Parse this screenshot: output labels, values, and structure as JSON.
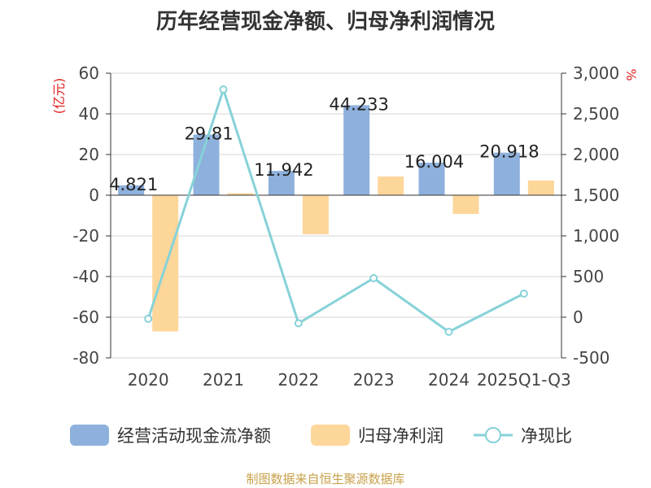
{
  "chart_data": {
    "type": "bar",
    "title": "历年经营现金净额、归母净利润情况",
    "categories": [
      "2020",
      "2021",
      "2022",
      "2023",
      "2024",
      "2025Q1-Q3"
    ],
    "left_axis": {
      "unit": "(亿元)",
      "range": [
        -80,
        60
      ],
      "ticks": [
        "60",
        "40",
        "20",
        "0",
        "-20",
        "-40",
        "-60",
        "-80"
      ]
    },
    "right_axis": {
      "unit": "%",
      "range": [
        -500,
        3000
      ],
      "ticks": [
        "3,000",
        "2,500",
        "2,000",
        "1,500",
        "1,000",
        "500",
        "0",
        "-500"
      ]
    },
    "series": [
      {
        "name": "经营活动现金流净额",
        "type": "bar",
        "axis": "left",
        "color": "#8eb0dc",
        "values": [
          4.821,
          29.81,
          11.942,
          44.233,
          16.004,
          20.918
        ],
        "labels": [
          "4.821",
          "29.81",
          "11.942",
          "44.233",
          "16.004",
          "20.918"
        ]
      },
      {
        "name": "归母净利润",
        "type": "bar",
        "axis": "left",
        "color": "#fdd69a",
        "values": [
          -67,
          1,
          -19.2,
          9.2,
          -9.2,
          7.2
        ]
      },
      {
        "name": "净现比",
        "type": "line",
        "axis": "right",
        "color": "#86d2d8",
        "values": [
          -20,
          2800,
          -75,
          480,
          -180,
          290
        ]
      }
    ],
    "grid": true,
    "legend": "bottom"
  },
  "source": "制图数据来自恒生聚源数据库"
}
